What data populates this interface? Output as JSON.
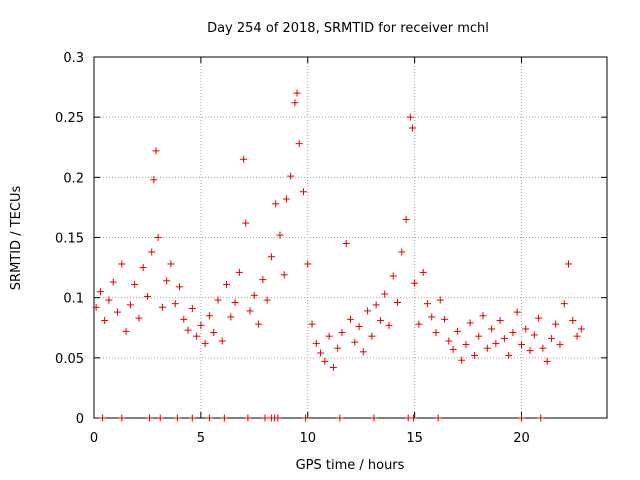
{
  "chart_data": {
    "type": "scatter",
    "title": "Day 254 of 2018, SRMTID for receiver mchl",
    "xlabel": "GPS time / hours",
    "ylabel": "SRMTID / TECUs",
    "xlim": [
      0,
      24
    ],
    "ylim": [
      0,
      0.3
    ],
    "xticks": [
      0,
      5,
      10,
      15,
      20
    ],
    "xtick_labels": [
      "0",
      "5",
      "10",
      "15",
      "20"
    ],
    "yticks": [
      0,
      0.05,
      0.1,
      0.15,
      0.2,
      0.25,
      0.3
    ],
    "ytick_labels": [
      "0",
      "0.05",
      "0.1",
      "0.15",
      "0.2",
      "0.25",
      "0.3"
    ],
    "grid": true,
    "marker": "+",
    "color": "#e00000",
    "series": [
      {
        "name": "SRMTID",
        "points": [
          [
            0.1,
            0.092
          ],
          [
            0.3,
            0.105
          ],
          [
            0.5,
            0.081
          ],
          [
            0.7,
            0.098
          ],
          [
            0.9,
            0.113
          ],
          [
            1.1,
            0.088
          ],
          [
            1.3,
            0.128
          ],
          [
            1.5,
            0.072
          ],
          [
            1.7,
            0.094
          ],
          [
            1.9,
            0.111
          ],
          [
            2.1,
            0.083
          ],
          [
            2.3,
            0.125
          ],
          [
            2.5,
            0.101
          ],
          [
            2.7,
            0.138
          ],
          [
            2.8,
            0.198
          ],
          [
            2.9,
            0.222
          ],
          [
            3.0,
            0.15
          ],
          [
            3.2,
            0.092
          ],
          [
            3.4,
            0.114
          ],
          [
            3.6,
            0.128
          ],
          [
            3.8,
            0.095
          ],
          [
            4.0,
            0.109
          ],
          [
            4.2,
            0.082
          ],
          [
            4.4,
            0.073
          ],
          [
            4.6,
            0.091
          ],
          [
            4.8,
            0.068
          ],
          [
            5.0,
            0.077
          ],
          [
            5.2,
            0.062
          ],
          [
            5.4,
            0.085
          ],
          [
            5.6,
            0.071
          ],
          [
            5.8,
            0.098
          ],
          [
            6.0,
            0.064
          ],
          [
            6.2,
            0.111
          ],
          [
            6.4,
            0.084
          ],
          [
            6.6,
            0.096
          ],
          [
            6.8,
            0.121
          ],
          [
            7.0,
            0.215
          ],
          [
            7.1,
            0.162
          ],
          [
            7.3,
            0.089
          ],
          [
            7.5,
            0.102
          ],
          [
            7.7,
            0.078
          ],
          [
            7.9,
            0.115
          ],
          [
            8.1,
            0.098
          ],
          [
            8.3,
            0.134
          ],
          [
            8.5,
            0.178
          ],
          [
            8.7,
            0.152
          ],
          [
            8.9,
            0.119
          ],
          [
            9.0,
            0.182
          ],
          [
            9.2,
            0.201
          ],
          [
            9.4,
            0.262
          ],
          [
            9.5,
            0.27
          ],
          [
            9.6,
            0.228
          ],
          [
            9.8,
            0.188
          ],
          [
            10.0,
            0.128
          ],
          [
            10.2,
            0.078
          ],
          [
            10.4,
            0.062
          ],
          [
            10.6,
            0.054
          ],
          [
            10.8,
            0.047
          ],
          [
            11.0,
            0.068
          ],
          [
            11.2,
            0.042
          ],
          [
            11.4,
            0.058
          ],
          [
            11.6,
            0.071
          ],
          [
            11.8,
            0.145
          ],
          [
            12.0,
            0.082
          ],
          [
            12.2,
            0.063
          ],
          [
            12.4,
            0.076
          ],
          [
            12.6,
            0.055
          ],
          [
            12.8,
            0.089
          ],
          [
            13.0,
            0.068
          ],
          [
            13.2,
            0.094
          ],
          [
            13.4,
            0.081
          ],
          [
            13.6,
            0.103
          ],
          [
            13.8,
            0.077
          ],
          [
            14.0,
            0.118
          ],
          [
            14.2,
            0.096
          ],
          [
            14.4,
            0.138
          ],
          [
            14.6,
            0.165
          ],
          [
            14.8,
            0.25
          ],
          [
            14.9,
            0.241
          ],
          [
            15.0,
            0.112
          ],
          [
            15.2,
            0.078
          ],
          [
            15.4,
            0.121
          ],
          [
            15.6,
            0.095
          ],
          [
            15.8,
            0.084
          ],
          [
            16.0,
            0.071
          ],
          [
            16.2,
            0.098
          ],
          [
            16.4,
            0.082
          ],
          [
            16.6,
            0.064
          ],
          [
            16.8,
            0.057
          ],
          [
            17.0,
            0.072
          ],
          [
            17.2,
            0.048
          ],
          [
            17.4,
            0.061
          ],
          [
            17.6,
            0.079
          ],
          [
            17.8,
            0.052
          ],
          [
            18.0,
            0.068
          ],
          [
            18.2,
            0.085
          ],
          [
            18.4,
            0.058
          ],
          [
            18.6,
            0.074
          ],
          [
            18.8,
            0.062
          ],
          [
            19.0,
            0.081
          ],
          [
            19.2,
            0.066
          ],
          [
            19.4,
            0.052
          ],
          [
            19.6,
            0.071
          ],
          [
            19.8,
            0.088
          ],
          [
            20.0,
            0.061
          ],
          [
            20.2,
            0.074
          ],
          [
            20.4,
            0.056
          ],
          [
            20.6,
            0.069
          ],
          [
            20.8,
            0.083
          ],
          [
            21.0,
            0.058
          ],
          [
            21.2,
            0.047
          ],
          [
            21.4,
            0.066
          ],
          [
            21.6,
            0.078
          ],
          [
            21.8,
            0.061
          ],
          [
            22.0,
            0.095
          ],
          [
            22.2,
            0.128
          ],
          [
            22.4,
            0.081
          ],
          [
            22.6,
            0.068
          ],
          [
            22.8,
            0.074
          ],
          [
            0.4,
            0.0
          ],
          [
            1.3,
            0.0
          ],
          [
            2.6,
            0.0
          ],
          [
            3.1,
            0.0
          ],
          [
            3.9,
            0.0
          ],
          [
            4.6,
            0.0
          ],
          [
            5.4,
            0.0
          ],
          [
            6.1,
            0.0
          ],
          [
            7.2,
            0.0
          ],
          [
            8.0,
            0.0
          ],
          [
            8.3,
            0.0
          ],
          [
            8.45,
            0.0
          ],
          [
            8.6,
            0.0
          ],
          [
            9.9,
            0.0
          ],
          [
            11.5,
            0.0
          ],
          [
            13.1,
            0.0
          ],
          [
            14.7,
            0.0
          ],
          [
            14.95,
            0.0
          ],
          [
            16.1,
            0.0
          ],
          [
            20.0,
            0.0
          ],
          [
            20.9,
            0.0
          ]
        ]
      }
    ]
  }
}
